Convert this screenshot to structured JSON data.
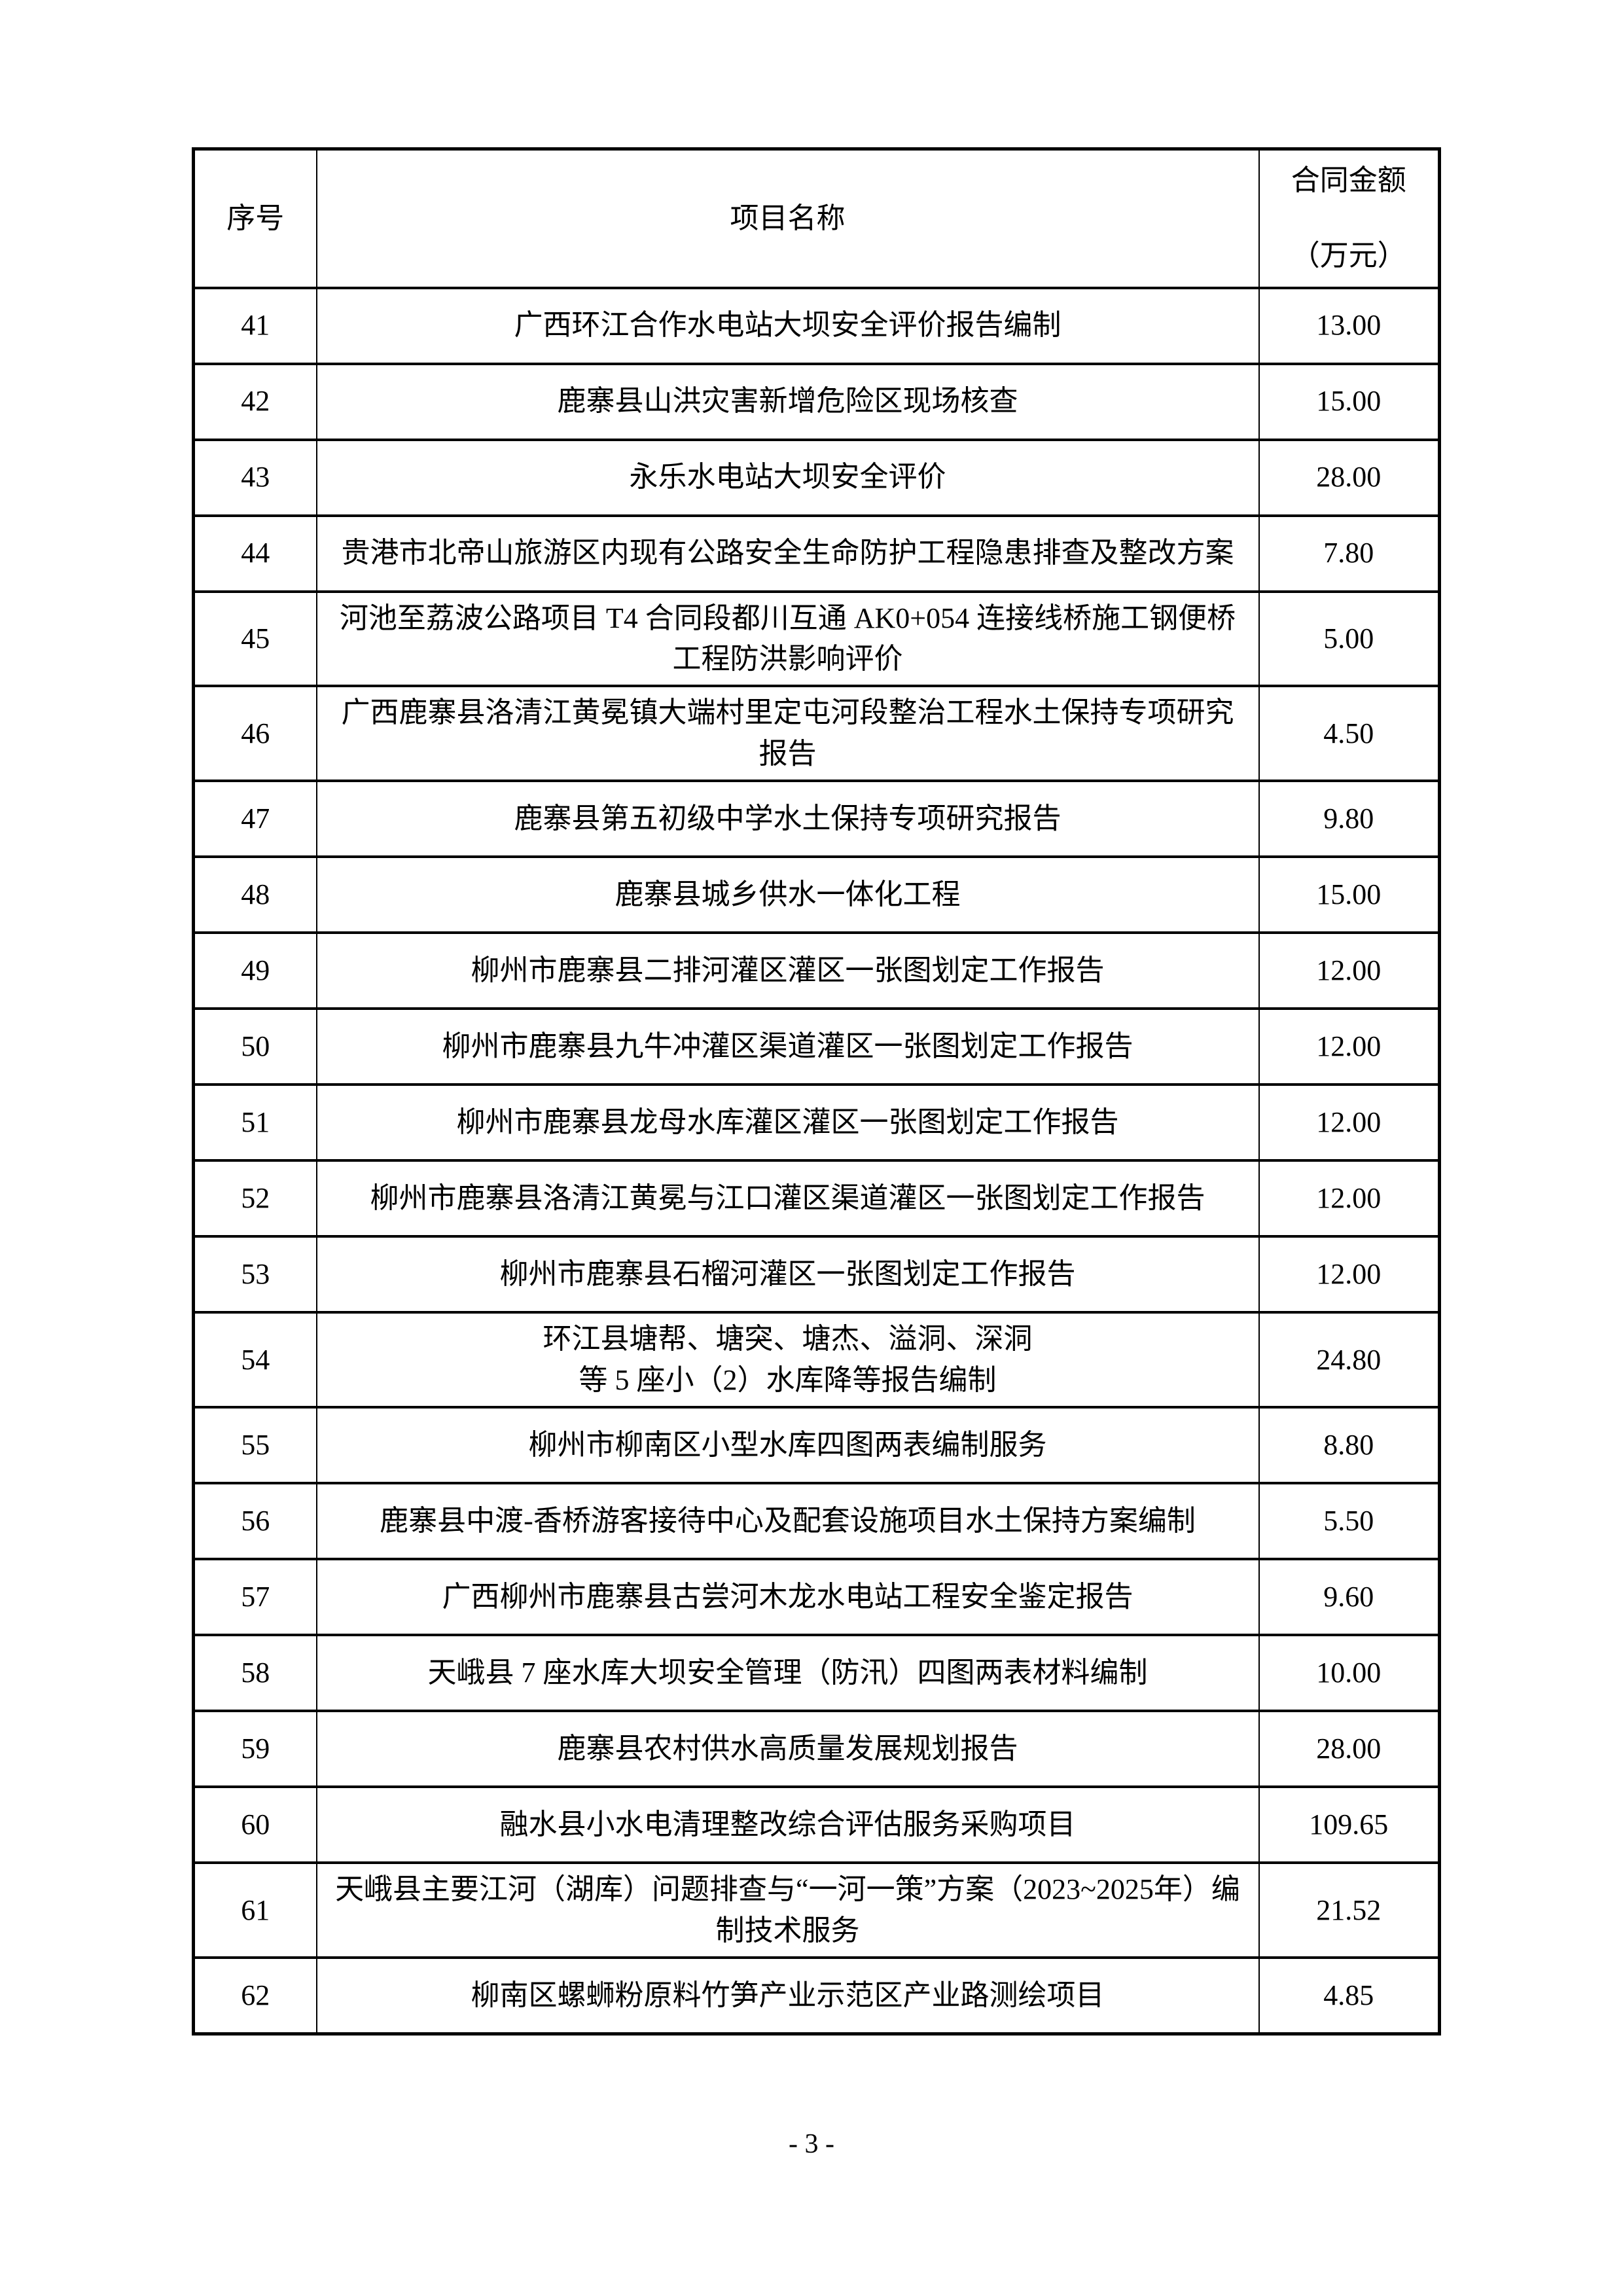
{
  "document": {
    "footer_page_label": "- 3 -"
  },
  "table": {
    "header": {
      "index": "序号",
      "project_name": "项目名称",
      "amount_line1": "合同金额",
      "amount_line2": "（万元）"
    },
    "rows": [
      {
        "index": "41",
        "name": "广西环江合作水电站大坝安全评价报告编制",
        "amount": "13.00"
      },
      {
        "index": "42",
        "name": "鹿寨县山洪灾害新增危险区现场核查",
        "amount": "15.00"
      },
      {
        "index": "43",
        "name": "永乐水电站大坝安全评价",
        "amount": "28.00"
      },
      {
        "index": "44",
        "name": "贵港市北帝山旅游区内现有公路安全生命防护工程隐患排查及整改方案",
        "amount": "7.80"
      },
      {
        "index": "45",
        "name": "河池至荔波公路项目 T4 合同段都川互通 AK0+054 连接线桥施工钢便桥工程防洪影响评价",
        "amount": "5.00"
      },
      {
        "index": "46",
        "name": "广西鹿寨县洛清江黄冕镇大端村里定屯河段整治工程水土保持专项研究报告",
        "amount": "4.50"
      },
      {
        "index": "47",
        "name": "鹿寨县第五初级中学水土保持专项研究报告",
        "amount": "9.80"
      },
      {
        "index": "48",
        "name": "鹿寨县城乡供水一体化工程",
        "amount": "15.00"
      },
      {
        "index": "49",
        "name": "柳州市鹿寨县二排河灌区灌区一张图划定工作报告",
        "amount": "12.00"
      },
      {
        "index": "50",
        "name": "柳州市鹿寨县九牛冲灌区渠道灌区一张图划定工作报告",
        "amount": "12.00"
      },
      {
        "index": "51",
        "name": "柳州市鹿寨县龙母水库灌区灌区一张图划定工作报告",
        "amount": "12.00"
      },
      {
        "index": "52",
        "name": "柳州市鹿寨县洛清江黄冕与江口灌区渠道灌区一张图划定工作报告",
        "amount": "12.00"
      },
      {
        "index": "53",
        "name": "柳州市鹿寨县石榴河灌区一张图划定工作报告",
        "amount": "12.00"
      },
      {
        "index": "54",
        "name": "环江县塘帮、塘突、塘杰、溢洞、深洞\n等 5 座小（2）水库降等报告编制",
        "amount": "24.80"
      },
      {
        "index": "55",
        "name": "柳州市柳南区小型水库四图两表编制服务",
        "amount": "8.80"
      },
      {
        "index": "56",
        "name": "鹿寨县中渡-香桥游客接待中心及配套设施项目水土保持方案编制",
        "amount": "5.50"
      },
      {
        "index": "57",
        "name": "广西柳州市鹿寨县古尝河木龙水电站工程安全鉴定报告",
        "amount": "9.60"
      },
      {
        "index": "58",
        "name": "天峨县 7 座水库大坝安全管理（防汛）四图两表材料编制",
        "amount": "10.00"
      },
      {
        "index": "59",
        "name": "鹿寨县农村供水高质量发展规划报告",
        "amount": "28.00"
      },
      {
        "index": "60",
        "name": "融水县小水电清理整改综合评估服务采购项目",
        "amount": "109.65"
      },
      {
        "index": "61",
        "name": "天峨县主要江河（湖库）问题排查与“一河一策”方案（2023~2025年）编制技术服务",
        "amount": "21.52"
      },
      {
        "index": "62",
        "name": "柳南区螺蛳粉原料竹笋产业示范区产业路测绘项目",
        "amount": "4.85"
      }
    ]
  }
}
